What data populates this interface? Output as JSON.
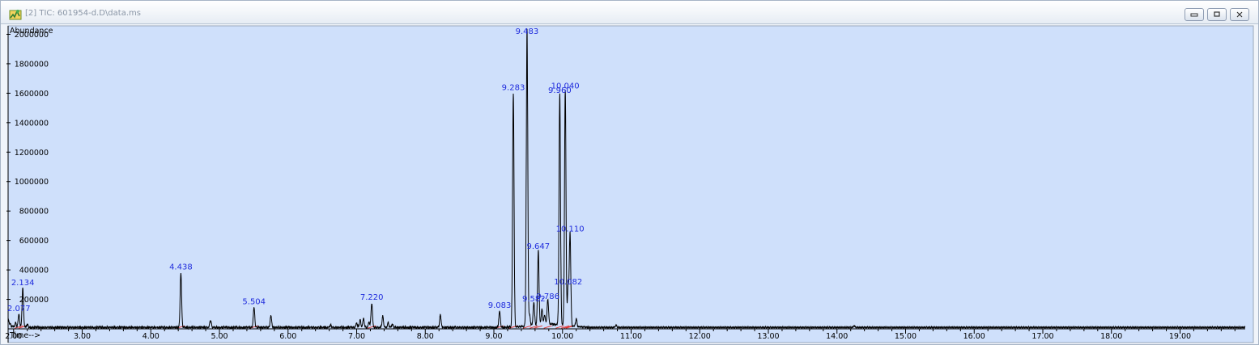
{
  "window": {
    "title": "[2] TIC: 601954-d.D\\data.ms",
    "icon": "chromatogram-app-icon"
  },
  "chart_data": {
    "type": "line",
    "title": "",
    "ylabel": "Abundance",
    "xlabel": "Time-->",
    "xlim": [
      1.92,
      19.95
    ],
    "ylim": [
      0,
      2030000
    ],
    "x_ticks": [
      2.0,
      3.0,
      4.0,
      5.0,
      6.0,
      7.0,
      8.0,
      9.0,
      10.0,
      11.0,
      12.0,
      13.0,
      14.0,
      15.0,
      16.0,
      17.0,
      18.0,
      19.0
    ],
    "x_tick_labels": [
      "2.00",
      "3.00",
      "4.00",
      "5.00",
      "6.00",
      "7.00",
      "8.00",
      "9.00",
      "10.00",
      "11.00",
      "12.00",
      "13.00",
      "14.00",
      "15.00",
      "16.00",
      "17.00",
      "18.00",
      "19.00"
    ],
    "y_ticks": [
      200000,
      400000,
      600000,
      800000,
      1000000,
      1200000,
      1400000,
      1600000,
      1800000,
      2000000
    ],
    "y_tick_labels": [
      "200000",
      "400000",
      "600000",
      "800000",
      "1000000",
      "1200000",
      "1400000",
      "1600000",
      "1800000",
      "2000000"
    ],
    "grid": false,
    "baseline": 10000,
    "background_color": "#cfe0fb",
    "trace_color": "#000000",
    "label_color": "#1f2bdc",
    "integration_color": "#e0302c",
    "peaks": [
      {
        "rt": 2.077,
        "height": 100000,
        "label": "2.077"
      },
      {
        "rt": 2.134,
        "height": 275000,
        "label": "2.134"
      },
      {
        "rt": 4.438,
        "height": 380000,
        "label": "4.438"
      },
      {
        "rt": 5.504,
        "height": 145000,
        "label": "5.504"
      },
      {
        "rt": 7.22,
        "height": 175000,
        "label": "7.220"
      },
      {
        "rt": 9.083,
        "height": 120000,
        "label": "9.083"
      },
      {
        "rt": 9.283,
        "height": 1600000,
        "label": "9.283"
      },
      {
        "rt": 9.483,
        "height": 2030000,
        "label": "9.483"
      },
      {
        "rt": 9.582,
        "height": 165000,
        "label": "9.582"
      },
      {
        "rt": 9.647,
        "height": 520000,
        "label": "9.647"
      },
      {
        "rt": 9.786,
        "height": 180000,
        "label": "9.786"
      },
      {
        "rt": 9.96,
        "height": 1580000,
        "label": "9.960"
      },
      {
        "rt": 10.04,
        "height": 1610000,
        "label": "10.040"
      },
      {
        "rt": 10.082,
        "height": 280000,
        "label": "10.082"
      },
      {
        "rt": 10.11,
        "height": 640000,
        "label": "10.110"
      }
    ],
    "minor_peaks": [
      {
        "rt": 2.03,
        "height": 40000
      },
      {
        "rt": 2.2,
        "height": 30000
      },
      {
        "rt": 4.87,
        "height": 60000
      },
      {
        "rt": 5.75,
        "height": 90000
      },
      {
        "rt": 6.62,
        "height": 25000
      },
      {
        "rt": 7.0,
        "height": 40000
      },
      {
        "rt": 7.05,
        "height": 60000
      },
      {
        "rt": 7.1,
        "height": 70000
      },
      {
        "rt": 7.18,
        "height": 45000
      },
      {
        "rt": 7.38,
        "height": 85000
      },
      {
        "rt": 7.46,
        "height": 40000
      },
      {
        "rt": 7.52,
        "height": 30000
      },
      {
        "rt": 8.22,
        "height": 95000
      },
      {
        "rt": 9.52,
        "height": 80000
      },
      {
        "rt": 9.7,
        "height": 110000
      },
      {
        "rt": 9.74,
        "height": 70000
      },
      {
        "rt": 10.2,
        "height": 60000
      },
      {
        "rt": 10.78,
        "height": 25000
      },
      {
        "rt": 14.25,
        "height": 20000
      }
    ]
  }
}
